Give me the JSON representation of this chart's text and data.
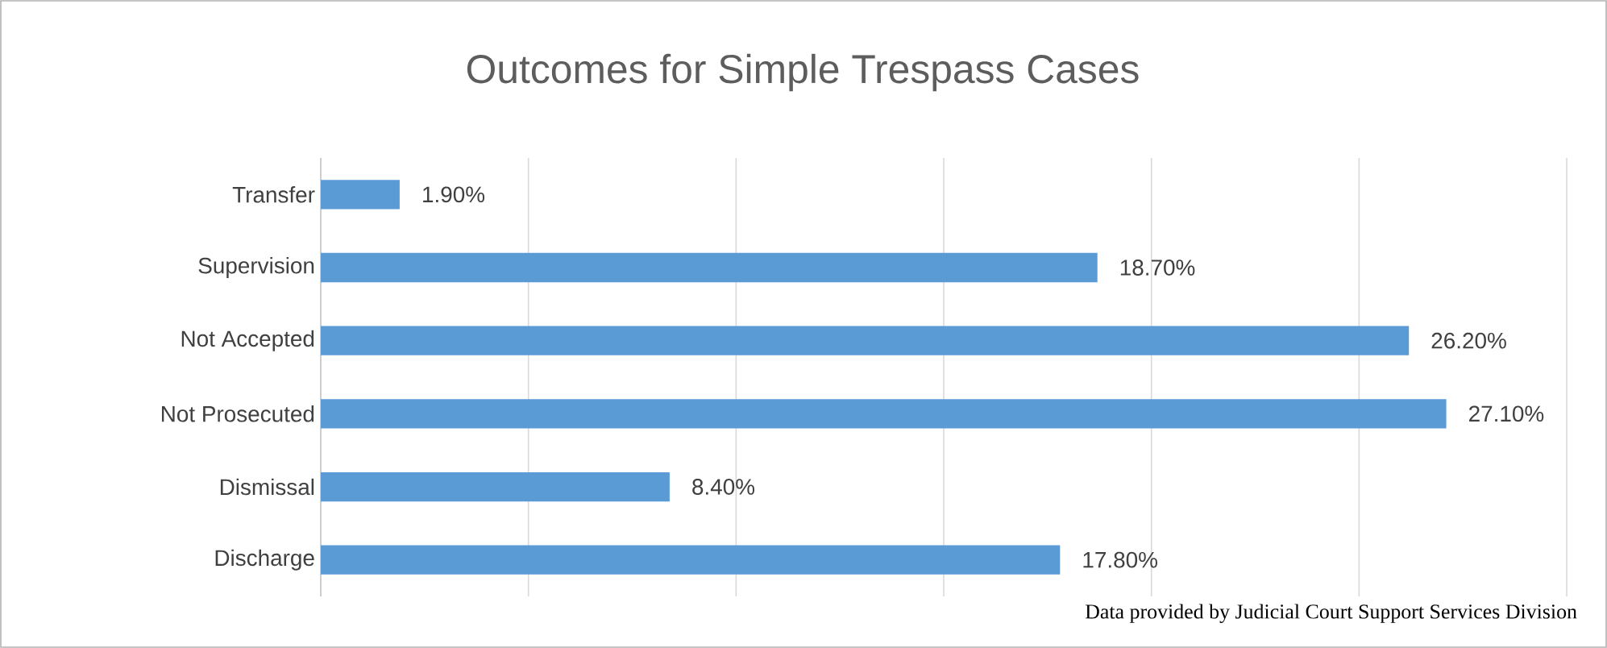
{
  "chart_data": {
    "type": "bar",
    "orientation": "horizontal",
    "title": "Outcomes for Simple Trespass Cases",
    "categories": [
      "Transfer",
      "Supervision",
      "Not Accepted",
      "Not Prosecuted",
      "Dismissal",
      "Discharge"
    ],
    "values": [
      1.9,
      18.7,
      26.2,
      27.1,
      8.4,
      17.8
    ],
    "value_labels": [
      "1.90%",
      "18.70%",
      "26.20%",
      "27.10%",
      "8.40%",
      "17.80%"
    ],
    "color": "#5b9bd5",
    "xlim": [
      0,
      30
    ],
    "xticks": [
      {
        "value": 0,
        "label": null
      },
      {
        "value": 5,
        "label": null
      },
      {
        "value": 10,
        "label": null
      },
      {
        "value": 15,
        "label": null
      },
      {
        "value": 20,
        "label": null
      },
      {
        "value": 25,
        "label": null
      },
      {
        "value": 30,
        "label": null
      }
    ],
    "grid": "x",
    "annotations": [
      "Data provided by Judicial Court Support Services Division"
    ]
  }
}
